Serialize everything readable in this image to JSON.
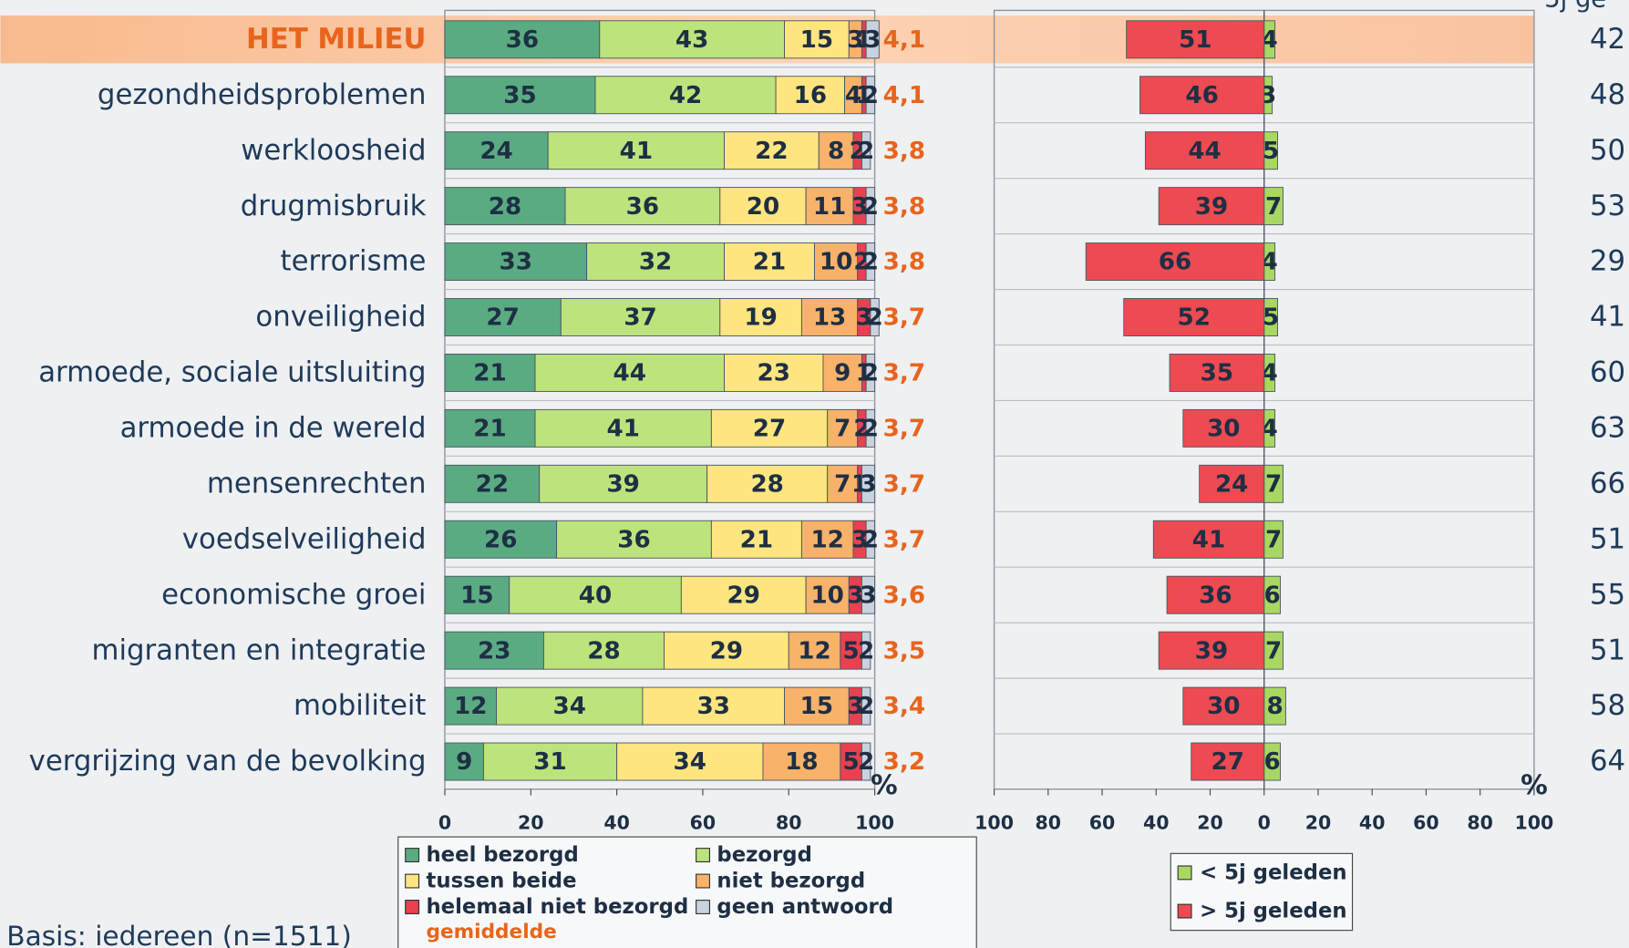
{
  "chart_data": [
    {
      "type": "stacked_bar",
      "categories": [
        "HET MILIEU",
        "gezondheidsproblemen",
        "werkloosheid",
        "drugmisbruik",
        "terrorisme",
        "onveiligheid",
        "armoede, sociale uitsluiting",
        "armoede in de wereld",
        "mensenrechten",
        "voedselveiligheid",
        "economische groei",
        "migranten en integratie",
        "mobiliteit",
        "vergrijzing van de bevolking"
      ],
      "highlight_index": 0,
      "highlight_color": "#e8641c",
      "series": [
        {
          "name": "heel bezorgd",
          "color": "#5aab82",
          "values": [
            36,
            35,
            24,
            28,
            33,
            27,
            21,
            21,
            22,
            26,
            15,
            23,
            12,
            9
          ]
        },
        {
          "name": "bezorgd",
          "color": "#bde37c",
          "values": [
            43,
            42,
            41,
            36,
            32,
            37,
            44,
            41,
            39,
            36,
            40,
            28,
            34,
            31
          ]
        },
        {
          "name": "tussen beide",
          "color": "#ffe57f",
          "values": [
            15,
            16,
            22,
            20,
            21,
            19,
            23,
            27,
            28,
            21,
            29,
            29,
            33,
            34
          ]
        },
        {
          "name": "niet bezorgd",
          "color": "#f8b26a",
          "values": [
            3,
            4,
            8,
            11,
            10,
            13,
            9,
            7,
            7,
            12,
            10,
            12,
            15,
            18
          ]
        },
        {
          "name": "helemaal niet bezorgd",
          "color": "#e8414f",
          "values": [
            1,
            1,
            2,
            3,
            2,
            3,
            1,
            2,
            1,
            3,
            3,
            5,
            3,
            5
          ]
        },
        {
          "name": "geen antwoord",
          "color": "#c9d3df",
          "values": [
            3,
            2,
            2,
            2,
            2,
            2,
            2,
            2,
            3,
            2,
            3,
            2,
            2,
            2
          ]
        }
      ],
      "average": {
        "name": "gemiddelde",
        "color": "#e8641c",
        "values": [
          4.1,
          4.1,
          3.8,
          3.8,
          3.8,
          3.7,
          3.7,
          3.7,
          3.7,
          3.7,
          3.6,
          3.5,
          3.4,
          3.2
        ],
        "value_labels": [
          "4,1",
          "4,1",
          "3,8",
          "3,8",
          "3,8",
          "3,7",
          "3,7",
          "3,7",
          "3,7",
          "3,7",
          "3,6",
          "3,5",
          "3,4",
          "3,2"
        ]
      },
      "xlim": [
        0,
        100
      ],
      "xticks": [
        0,
        20,
        40,
        60,
        80,
        100
      ],
      "unit_label": "%",
      "footnote": "Basis: iedereen (n=1511)"
    },
    {
      "type": "diverging_bar",
      "series": [
        {
          "name": "< 5j geleden",
          "color": "#a9d862",
          "values": [
            4,
            3,
            5,
            7,
            4,
            5,
            4,
            4,
            7,
            7,
            6,
            7,
            8,
            6
          ]
        },
        {
          "name": "> 5j geleden",
          "color": "#ee4a52",
          "values": [
            -51,
            -46,
            -44,
            -39,
            -66,
            -52,
            -35,
            -30,
            -24,
            -41,
            -36,
            -39,
            -30,
            -27
          ],
          "value_labels": [
            "51",
            "46",
            "44",
            "39",
            "66",
            "52",
            "35",
            "30",
            "24",
            "41",
            "36",
            "39",
            "30",
            "27"
          ]
        }
      ],
      "xlim": [
        -100,
        100
      ],
      "xticks": [
        {
          "value": -100,
          "label": "100"
        },
        {
          "value": -80,
          "label": "80"
        },
        {
          "value": -60,
          "label": "60"
        },
        {
          "value": -40,
          "label": "40"
        },
        {
          "value": -20,
          "label": "20"
        },
        0,
        20,
        40,
        60,
        80,
        100
      ],
      "unit_label": "%",
      "extra_column": {
        "name": "5j ge",
        "values": [
          42,
          48,
          50,
          53,
          29,
          41,
          60,
          63,
          66,
          51,
          55,
          51,
          58,
          64
        ]
      }
    }
  ]
}
